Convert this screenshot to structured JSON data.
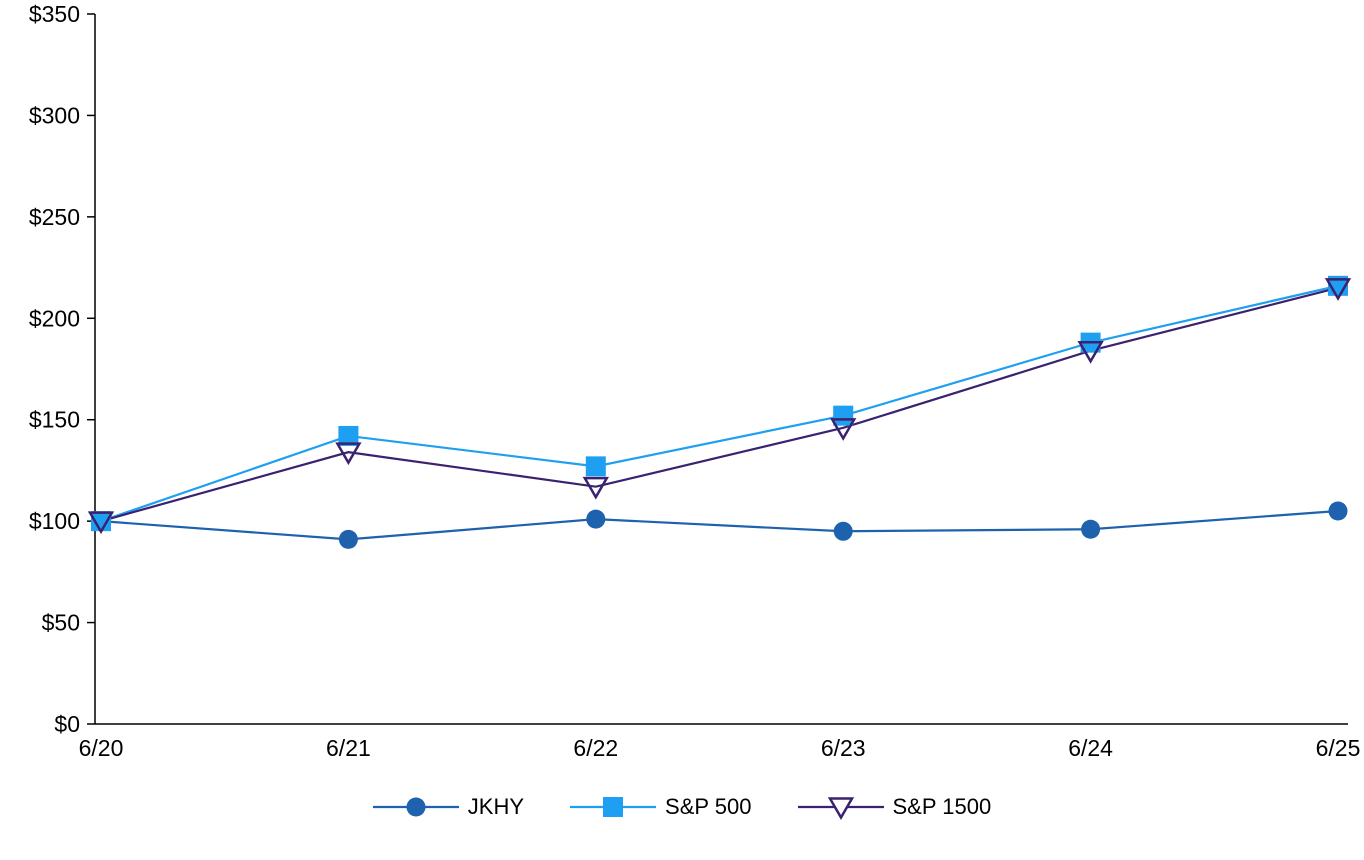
{
  "chart_data": {
    "type": "line",
    "title": "",
    "xlabel": "",
    "ylabel": "",
    "x": [
      "6/20",
      "6/21",
      "6/22",
      "6/23",
      "6/24",
      "6/25"
    ],
    "series": [
      {
        "name": "JKHY",
        "marker": "circle",
        "color": "#1e62ad",
        "values": [
          100,
          91,
          101,
          95,
          96,
          105
        ]
      },
      {
        "name": "S&P 500",
        "marker": "square",
        "color": "#1e9ff2",
        "values": [
          100,
          142,
          127,
          152,
          188,
          216
        ]
      },
      {
        "name": "S&P 1500",
        "marker": "triangle-down-hollow",
        "color": "#3a2270",
        "values": [
          100,
          134,
          117,
          146,
          184,
          215
        ]
      }
    ],
    "ylim": [
      0,
      350
    ],
    "ytick_step": 50,
    "ytick_prefix": "$",
    "ytick_labels": [
      "$0",
      "$50",
      "$100",
      "$150",
      "$200",
      "$250",
      "$300",
      "$350"
    ],
    "grid": false,
    "legend_position": "bottom",
    "axis_color": "#000000",
    "background": "#ffffff"
  }
}
